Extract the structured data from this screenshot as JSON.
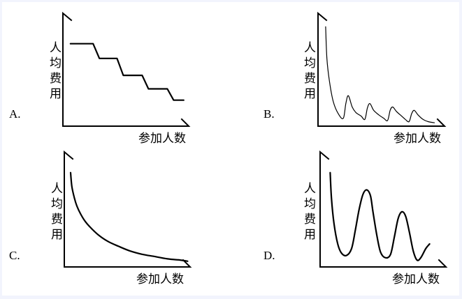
{
  "chart_data": [
    {
      "letter": "A.",
      "type": "line",
      "ylabel": "人均费用",
      "xlabel": "参加人数",
      "description_shape": "step-decrease",
      "series": [
        {
          "values": [
            [
              0.06,
              0.73
            ],
            [
              0.24,
              0.73
            ],
            [
              0.29,
              0.6
            ],
            [
              0.43,
              0.6
            ],
            [
              0.48,
              0.45
            ],
            [
              0.63,
              0.45
            ],
            [
              0.68,
              0.33
            ],
            [
              0.83,
              0.33
            ],
            [
              0.88,
              0.23
            ],
            [
              0.96,
              0.23
            ]
          ]
        }
      ]
    },
    {
      "letter": "B.",
      "type": "line",
      "ylabel": "人均费用",
      "xlabel": "参加人数",
      "series": [
        {
          "values": [
            [
              0.06,
              0.88
            ],
            [
              0.07,
              0.6
            ],
            [
              0.09,
              0.4
            ],
            [
              0.12,
              0.22
            ],
            [
              0.16,
              0.11
            ],
            [
              0.2,
              0.07
            ],
            [
              0.22,
              0.2
            ],
            [
              0.24,
              0.27
            ],
            [
              0.27,
              0.17
            ],
            [
              0.3,
              0.12
            ],
            [
              0.34,
              0.09
            ],
            [
              0.37,
              0.06
            ],
            [
              0.39,
              0.16
            ],
            [
              0.41,
              0.2
            ],
            [
              0.44,
              0.14
            ],
            [
              0.48,
              0.1
            ],
            [
              0.52,
              0.07
            ],
            [
              0.55,
              0.05
            ],
            [
              0.57,
              0.14
            ],
            [
              0.59,
              0.17
            ],
            [
              0.62,
              0.13
            ],
            [
              0.66,
              0.09
            ],
            [
              0.69,
              0.06
            ],
            [
              0.72,
              0.04
            ],
            [
              0.74,
              0.11
            ],
            [
              0.76,
              0.14
            ],
            [
              0.79,
              0.1
            ],
            [
              0.83,
              0.06
            ],
            [
              0.87,
              0.04
            ],
            [
              0.92,
              0.03
            ]
          ]
        }
      ]
    },
    {
      "letter": "C.",
      "type": "line",
      "ylabel": "人均费用",
      "xlabel": "参加人数",
      "series": [
        {
          "values": [
            [
              0.05,
              0.82
            ],
            [
              0.06,
              0.7
            ],
            [
              0.08,
              0.6
            ],
            [
              0.1,
              0.53
            ],
            [
              0.13,
              0.46
            ],
            [
              0.17,
              0.39
            ],
            [
              0.22,
              0.33
            ],
            [
              0.28,
              0.27
            ],
            [
              0.35,
              0.22
            ],
            [
              0.43,
              0.18
            ],
            [
              0.52,
              0.14
            ],
            [
              0.62,
              0.11
            ],
            [
              0.72,
              0.09
            ],
            [
              0.82,
              0.07
            ],
            [
              0.92,
              0.06
            ],
            [
              0.98,
              0.05
            ]
          ]
        }
      ]
    },
    {
      "letter": "D.",
      "type": "line",
      "ylabel": "人均费用",
      "xlabel": "参加人数",
      "series": [
        {
          "values": [
            [
              0.08,
              0.82
            ],
            [
              0.09,
              0.6
            ],
            [
              0.11,
              0.38
            ],
            [
              0.14,
              0.2
            ],
            [
              0.17,
              0.12
            ],
            [
              0.21,
              0.1
            ],
            [
              0.25,
              0.16
            ],
            [
              0.28,
              0.32
            ],
            [
              0.31,
              0.5
            ],
            [
              0.34,
              0.63
            ],
            [
              0.37,
              0.67
            ],
            [
              0.4,
              0.62
            ],
            [
              0.42,
              0.48
            ],
            [
              0.45,
              0.28
            ],
            [
              0.48,
              0.13
            ],
            [
              0.52,
              0.08
            ],
            [
              0.56,
              0.11
            ],
            [
              0.59,
              0.26
            ],
            [
              0.62,
              0.42
            ],
            [
              0.65,
              0.48
            ],
            [
              0.68,
              0.44
            ],
            [
              0.71,
              0.3
            ],
            [
              0.74,
              0.14
            ],
            [
              0.77,
              0.06
            ],
            [
              0.8,
              0.08
            ],
            [
              0.84,
              0.16
            ],
            [
              0.87,
              0.2
            ]
          ]
        }
      ]
    }
  ]
}
